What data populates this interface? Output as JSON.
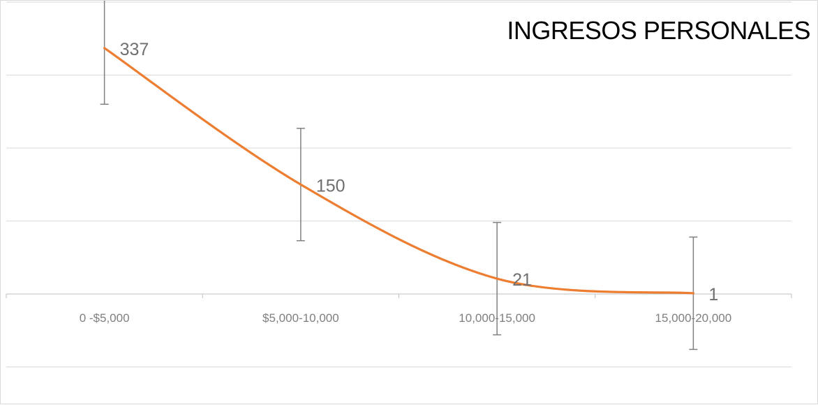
{
  "chart_data": {
    "type": "line",
    "title": "INGRESOS PERSONALES",
    "categories": [
      "0 -$5,000",
      "$5,000-10,000",
      "10,000-15,000",
      "15,000-20,000"
    ],
    "series": [
      {
        "values": [
          337,
          150,
          21,
          1
        ],
        "color": "#ed7d31",
        "smoothed": true
      }
    ],
    "error_bars": {
      "plus_minus": 77,
      "color": "#808080"
    },
    "data_labels": [
      "337",
      "150",
      "21",
      "1"
    ],
    "ylim": [
      -200,
      400
    ],
    "y_gridline_step": 100,
    "y_axis_labels_shown": false,
    "grid": true,
    "legend": "none"
  }
}
